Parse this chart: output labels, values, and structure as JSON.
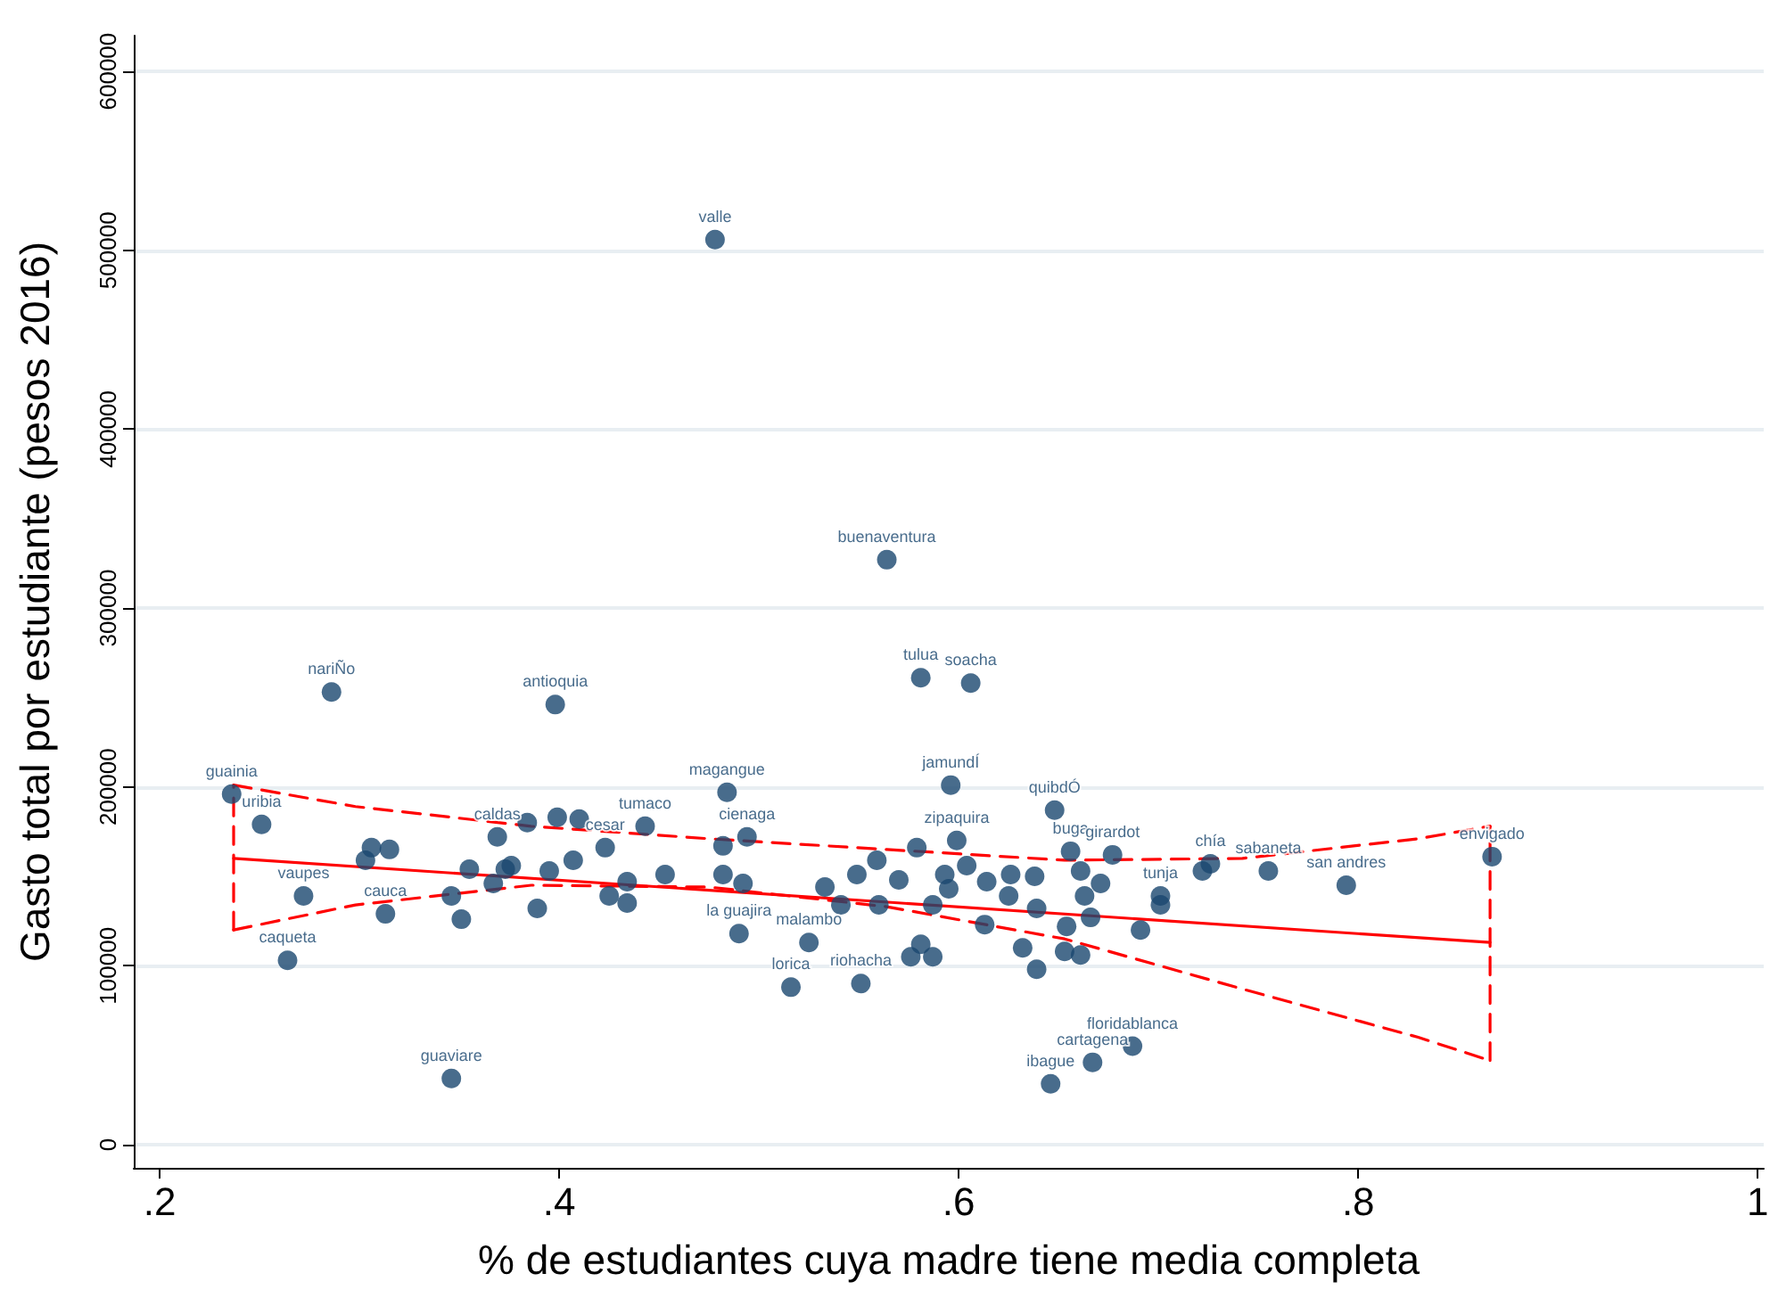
{
  "chart_data": {
    "type": "scatter",
    "xlabel": "% de estudiantes cuya madre tiene media completa",
    "ylabel": "Gasto total por estudiante (pesos 2016)",
    "xlim": [
      0.187,
      1.003
    ],
    "xticks": [
      {
        "value": 0.2,
        "label": ".2"
      },
      {
        "value": 0.4,
        "label": ".4"
      },
      {
        "value": 0.6,
        "label": ".6"
      },
      {
        "value": 0.8,
        "label": ".8"
      },
      {
        "value": 1,
        "label": "1"
      }
    ],
    "ylim": [
      -13000,
      620000
    ],
    "yticks": [
      0,
      100000,
      200000,
      300000,
      400000,
      500000,
      600000
    ],
    "grid": "y",
    "marker": "circle",
    "series": [
      {
        "color": "#1a476f",
        "x": [
          0.236,
          0.251,
          0.286,
          0.272,
          0.264,
          0.346,
          0.313,
          0.303,
          0.306,
          0.315,
          0.355,
          0.346,
          0.351,
          0.369,
          0.367,
          0.373,
          0.376,
          0.389,
          0.384,
          0.399,
          0.41,
          0.407,
          0.395,
          0.443,
          0.423,
          0.425,
          0.434,
          0.434,
          0.453,
          0.484,
          0.482,
          0.494,
          0.482,
          0.492,
          0.49,
          0.525,
          0.516,
          0.551,
          0.398,
          0.478,
          0.564,
          0.581,
          0.606,
          0.596,
          0.648,
          0.533,
          0.541,
          0.559,
          0.549,
          0.56,
          0.581,
          0.576,
          0.587,
          0.587,
          0.593,
          0.595,
          0.599,
          0.579,
          0.57,
          0.604,
          0.614,
          0.613,
          0.626,
          0.625,
          0.632,
          0.638,
          0.639,
          0.639,
          0.653,
          0.654,
          0.661,
          0.656,
          0.661,
          0.663,
          0.666,
          0.677,
          0.671,
          0.646,
          0.667,
          0.687,
          0.691,
          0.701,
          0.701,
          0.722,
          0.726,
          0.755,
          0.794,
          0.867
        ],
        "values": [
          196000,
          179000,
          253000,
          139000,
          103000,
          37000,
          129000,
          159000,
          166000,
          165000,
          154000,
          139000,
          126000,
          172000,
          146000,
          154000,
          156000,
          132000,
          180000,
          183000,
          182000,
          159000,
          153000,
          178000,
          166000,
          139000,
          135000,
          147000,
          151000,
          197000,
          167000,
          172000,
          151000,
          146000,
          118000,
          113000,
          88000,
          90000,
          246000,
          506000,
          327000,
          261000,
          258000,
          201000,
          187000,
          144000,
          134000,
          159000,
          151000,
          134000,
          112000,
          105000,
          105000,
          134000,
          151000,
          143000,
          170000,
          166000,
          148000,
          156000,
          147000,
          123000,
          151000,
          139000,
          110000,
          150000,
          132000,
          98000,
          108000,
          122000,
          106000,
          164000,
          153000,
          139000,
          127000,
          162000,
          146000,
          34000,
          46000,
          55000,
          120000,
          139000,
          134000,
          153000,
          157000,
          153000,
          145000,
          161000
        ],
        "value_labels": [
          "guainia",
          "uribia",
          "nariÑo",
          "vaupes",
          "caqueta",
          "guaviare",
          "cauca",
          null,
          null,
          null,
          null,
          null,
          null,
          "caldas",
          null,
          null,
          null,
          null,
          null,
          null,
          null,
          null,
          null,
          "tumaco",
          "cesar",
          null,
          null,
          null,
          null,
          "magangue",
          null,
          "cienaga",
          null,
          null,
          "la guajira",
          "malambo",
          "lorica",
          "riohacha",
          "antioquia",
          "valle",
          "buenaventura",
          "tulua",
          "soacha",
          "jamundÍ",
          "quibdÓ",
          null,
          null,
          null,
          null,
          null,
          null,
          null,
          null,
          null,
          null,
          null,
          "zipaquira",
          null,
          null,
          null,
          null,
          null,
          null,
          null,
          null,
          null,
          null,
          null,
          null,
          null,
          null,
          "buga",
          null,
          null,
          null,
          "girardot",
          null,
          "ibague",
          "cartagena",
          "floridablanca",
          null,
          "tunja",
          null,
          null,
          "chía",
          "sabaneta",
          "san andres",
          "envigado"
        ]
      },
      {
        "type": "line",
        "color": "#ff0000",
        "line_style": "solid",
        "marker": "none",
        "x": [
          0.237,
          0.866
        ],
        "values": [
          160000,
          113000
        ]
      },
      {
        "type": "line",
        "color": "#ff0000",
        "line_style": "dashed",
        "marker": "none",
        "x": [
          0.237,
          0.298,
          0.386,
          0.475,
          0.564,
          0.653,
          0.742,
          0.83,
          0.866
        ],
        "values": [
          201000,
          189000,
          178000,
          171000,
          165000,
          159000,
          160000,
          171000,
          178000
        ]
      },
      {
        "type": "line",
        "color": "#ff0000",
        "line_style": "dashed",
        "marker": "none",
        "x": [
          0.237,
          0.298,
          0.386,
          0.475,
          0.564,
          0.653,
          0.742,
          0.83,
          0.866
        ],
        "values": [
          120000,
          134000,
          145000,
          144000,
          133000,
          115000,
          87000,
          60000,
          47000
        ]
      },
      {
        "type": "line",
        "color": "#ff0000",
        "line_style": "dashed",
        "marker": "none",
        "x": [
          0.237,
          0.237
        ],
        "values": [
          120000,
          201000
        ]
      },
      {
        "type": "line",
        "color": "#ff0000",
        "line_style": "dashed",
        "marker": "none",
        "x": [
          0.866,
          0.866
        ],
        "values": [
          47000,
          178000
        ]
      }
    ]
  }
}
